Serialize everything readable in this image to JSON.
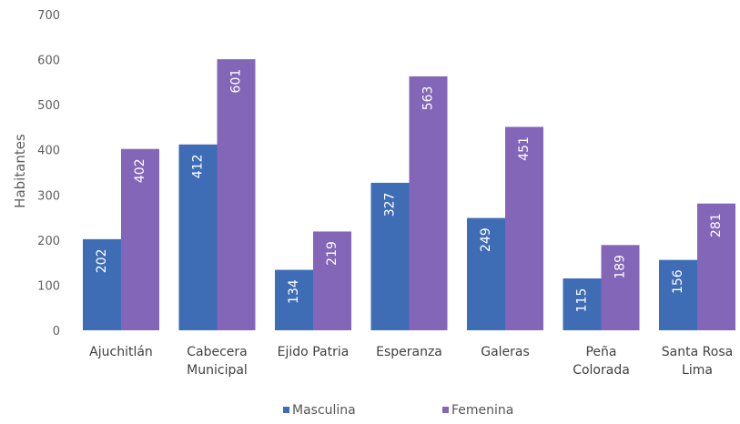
{
  "chart_data": {
    "type": "bar",
    "ylabel": "Habitantes",
    "ylim": [
      0,
      700
    ],
    "yticks": [
      0,
      100,
      200,
      300,
      400,
      500,
      600,
      700
    ],
    "grid": false,
    "legend_position": "bottom",
    "categories": [
      [
        "Ajuchitlán"
      ],
      [
        "Cabecera",
        "Municipal"
      ],
      [
        "Ejido Patria"
      ],
      [
        "Esperanza"
      ],
      [
        "Galeras"
      ],
      [
        "Peña",
        "Colorada"
      ],
      [
        "Santa Rosa",
        "Lima"
      ]
    ],
    "series": [
      {
        "name": "Masculina",
        "color": "#3e6db5",
        "values": [
          202,
          412,
          134,
          327,
          249,
          115,
          156
        ]
      },
      {
        "name": "Femenina",
        "color": "#8466b8",
        "values": [
          402,
          601,
          219,
          563,
          451,
          189,
          281
        ]
      }
    ]
  }
}
